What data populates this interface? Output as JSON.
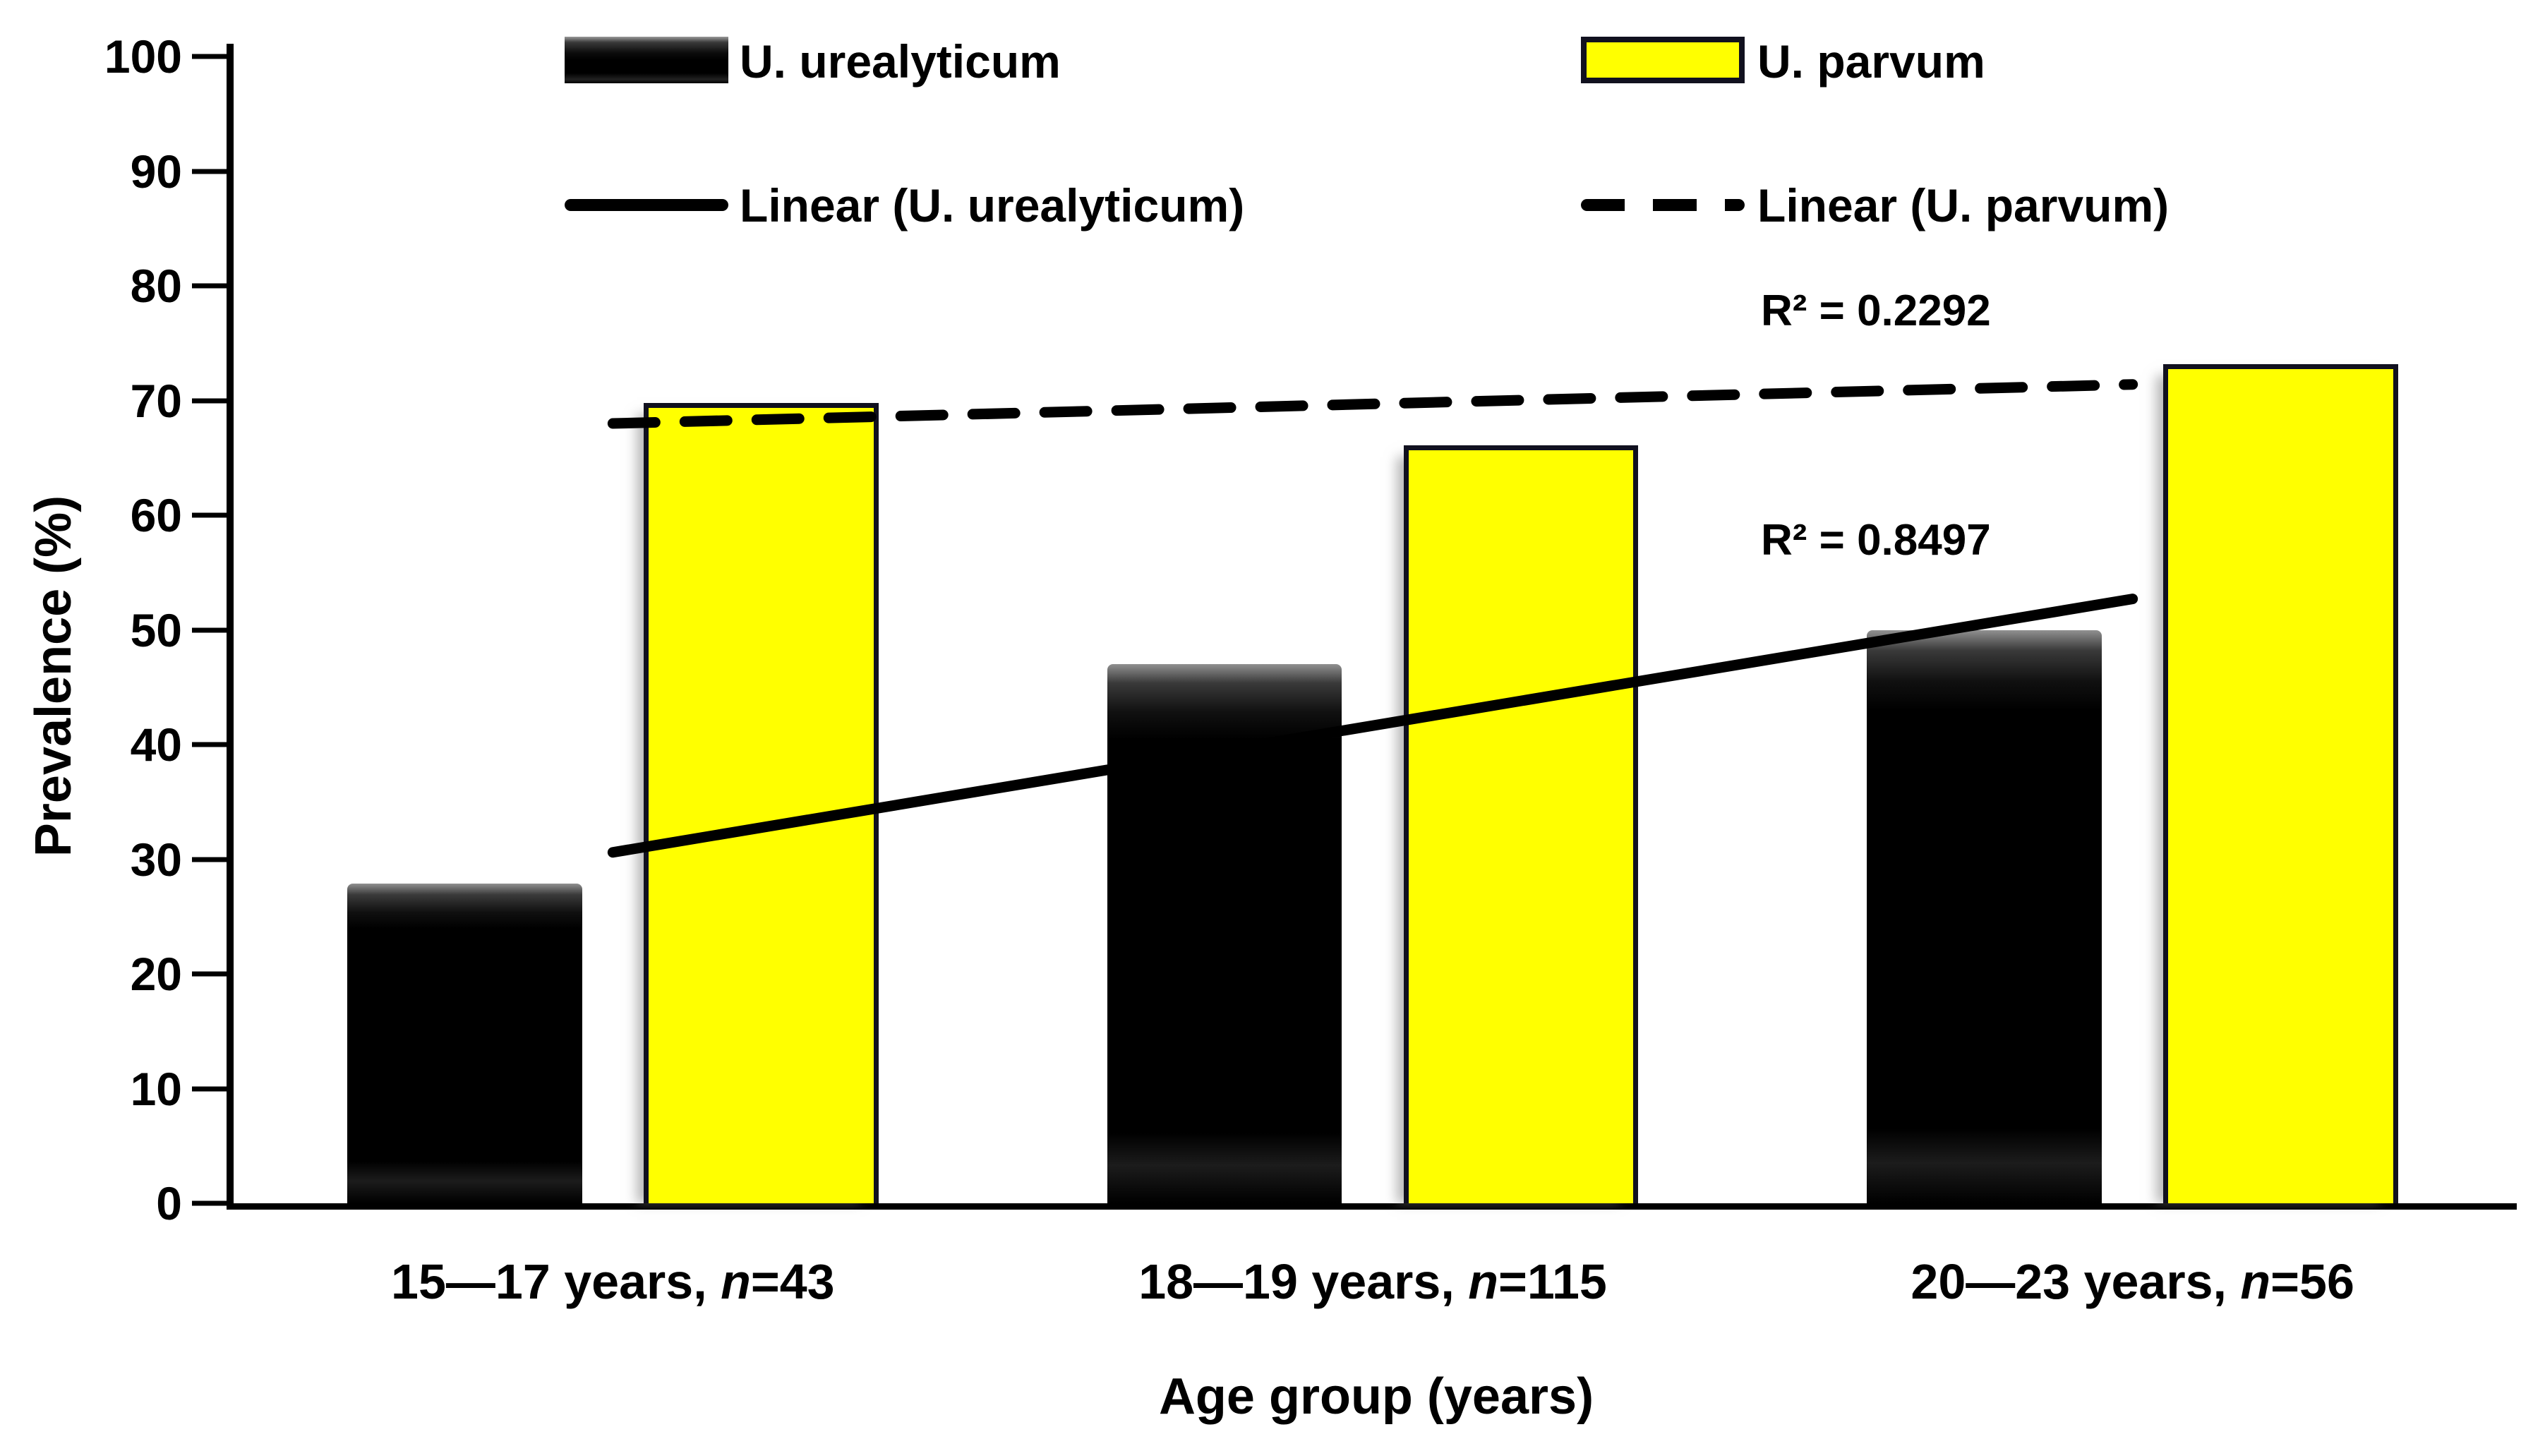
{
  "chart_data": {
    "type": "bar",
    "title": "",
    "xlabel": "Age group (years)",
    "ylabel": "Prevalence (%)",
    "ylim": [
      0,
      100
    ],
    "yticks": [
      0,
      10,
      20,
      30,
      40,
      50,
      60,
      70,
      80,
      90,
      100
    ],
    "ytick_labels": [
      "0",
      "10",
      "20",
      "30",
      "40",
      "50",
      "60",
      "70",
      "80",
      "90",
      "100"
    ],
    "grid": false,
    "legend_position": "top-inside",
    "categories": [
      {
        "label": "15—17 years, n=43",
        "text": "15—17 years, ",
        "n_label": "n",
        "n_value": "=43"
      },
      {
        "label": "18—19 years, n=115",
        "text": "18—19 years, ",
        "n_label": "n",
        "n_value": "=115"
      },
      {
        "label": "20—23 years, n=56",
        "text": "20—23 years, ",
        "n_label": "n",
        "n_value": "=56"
      }
    ],
    "series": [
      {
        "name": "U. urealyticum",
        "color": "#000000",
        "values": [
          27.9,
          47.0,
          50.0
        ]
      },
      {
        "name": "U. parvum",
        "color": "#ffff00",
        "values": [
          69.8,
          66.1,
          73.2
        ]
      }
    ],
    "trendlines": [
      {
        "name": "Linear (U. urealyticum)",
        "style": "solid",
        "color": "#000000",
        "r2_label": "R² = 0.8497",
        "y_start": 30.6,
        "y_end": 52.7
      },
      {
        "name": "Linear (U. parvum)",
        "style": "dashed",
        "color": "#000000",
        "r2_label": "R² = 0.2292",
        "y_start": 68.0,
        "y_end": 71.4
      }
    ]
  }
}
